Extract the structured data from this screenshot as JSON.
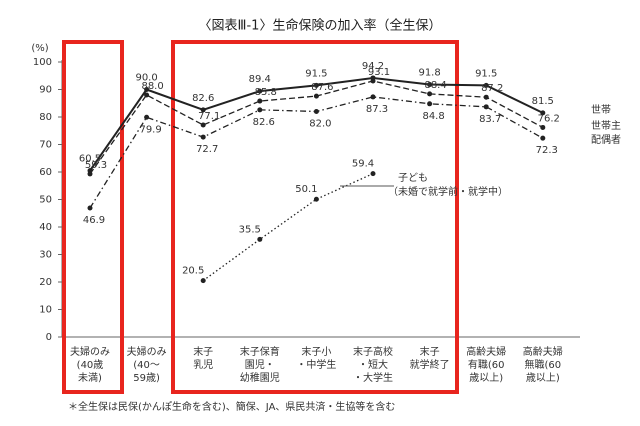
{
  "chart_data": {
    "type": "line",
    "title": "〈図表Ⅲ-1〉生命保険の加入率（全生保）",
    "y_label": "(%)",
    "categories": [
      [
        "夫婦のみ",
        "(40歳",
        "未満)"
      ],
      [
        "夫婦のみ",
        "(40～",
        "59歳)"
      ],
      [
        "末子",
        "乳児"
      ],
      [
        "末子保育",
        "園児・",
        "幼稚園児"
      ],
      [
        "末子小",
        "・中学生"
      ],
      [
        "末子高校",
        "・短大",
        "・大学生"
      ],
      [
        "末子",
        "就学終了"
      ],
      [
        "高齢夫婦",
        "有職(60",
        "歳以上)"
      ],
      [
        "高齢夫婦",
        "無職(60",
        "歳以上)"
      ]
    ],
    "ylim": [
      0,
      100
    ],
    "yticks": [
      0,
      10,
      20,
      30,
      40,
      50,
      60,
      70,
      80,
      90,
      100
    ],
    "series": [
      {
        "name": "世帯",
        "color": "#222222",
        "style": "solid",
        "values": [
          60.5,
          90.0,
          82.6,
          89.4,
          91.5,
          94.2,
          91.8,
          91.5,
          81.5
        ],
        "value_labels": [
          "60.5",
          "90.0",
          "82.6",
          "89.4",
          "91.5",
          "94.2",
          "91.8",
          "91.5",
          "81.5"
        ]
      },
      {
        "name": "世帯主",
        "color": "#222222",
        "style": "dashed",
        "values": [
          59.3,
          88.0,
          77.1,
          85.8,
          87.6,
          93.1,
          88.4,
          87.2,
          76.2
        ],
        "value_labels": [
          "59.3",
          "88.0",
          "77.1",
          "85.8",
          "87.6",
          "93.1",
          "88.4",
          "87.2",
          "76.2"
        ]
      },
      {
        "name": "配偶者",
        "color": "#222222",
        "style": "dashdot",
        "values": [
          46.9,
          79.9,
          72.7,
          82.6,
          82.0,
          87.3,
          84.8,
          83.7,
          72.3
        ],
        "value_labels": [
          "46.9",
          "79.9",
          "72.7",
          "82.6",
          "82.0",
          "87.3",
          "84.8",
          "83.7",
          "72.3"
        ]
      },
      {
        "name": "子ども",
        "color": "#222222",
        "style": "dotted",
        "values": [
          null,
          null,
          20.5,
          35.5,
          50.1,
          59.4,
          null,
          null,
          null
        ],
        "value_labels": [
          null,
          null,
          "20.5",
          "35.5",
          "50.1",
          "59.4",
          null,
          null,
          null
        ]
      }
    ],
    "legend_note": "（未婚で就学前・就学中）",
    "footnote": "＊全生保は民保(かんぽ生命を含む)、簡保、JA、県民共済・生協等を含む"
  }
}
